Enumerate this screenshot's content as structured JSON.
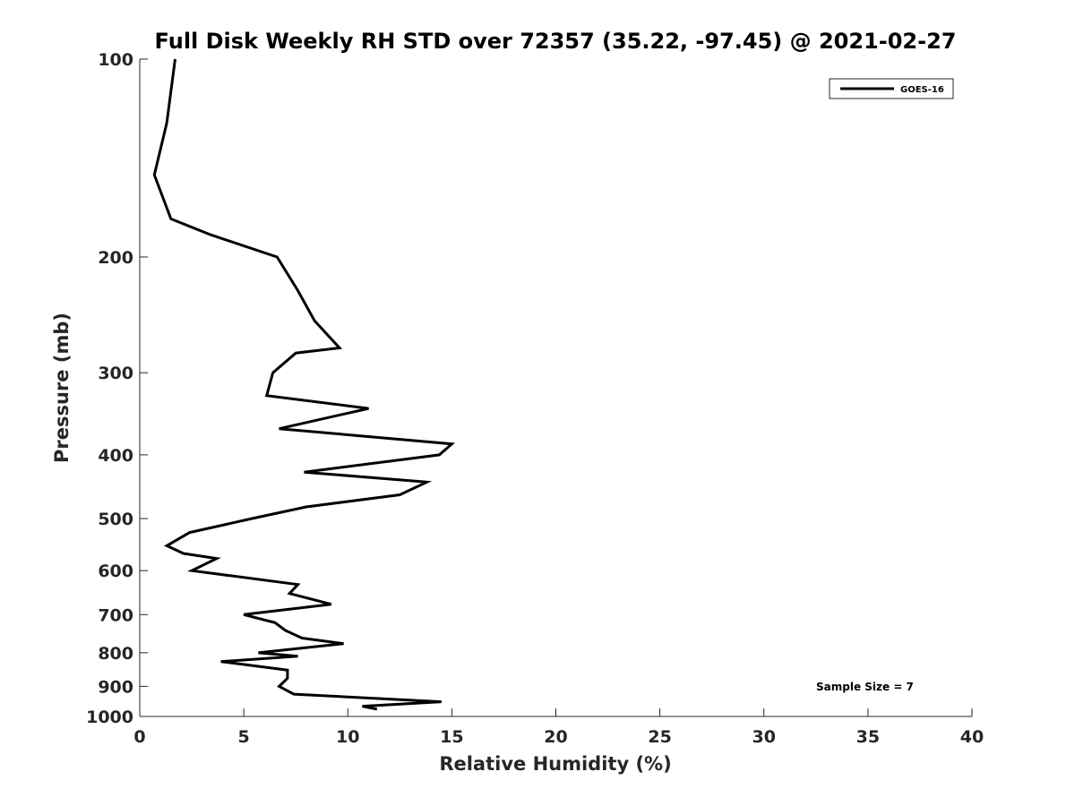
{
  "chart_data": {
    "type": "line",
    "title": "Full Disk Weekly RH STD over 72357 (35.22, -97.45) @ 2021-02-27",
    "xlabel": "Relative Humidity (%)",
    "ylabel": "Pressure (mb)",
    "xlim": [
      0,
      40
    ],
    "ylim": [
      1000,
      100
    ],
    "y_scale": "log",
    "y_reversed": true,
    "grid": false,
    "xticks": [
      0,
      5,
      10,
      15,
      20,
      25,
      30,
      35,
      40
    ],
    "yticks": [
      100,
      200,
      300,
      400,
      500,
      600,
      700,
      800,
      900,
      1000
    ],
    "legend": {
      "position": "top-right",
      "entries": [
        "GOES-16"
      ]
    },
    "annotation": "Sample Size = 7",
    "series": [
      {
        "name": "GOES-16",
        "color": "#000000",
        "points": [
          [
            1.7,
            100
          ],
          [
            1.3,
            125
          ],
          [
            0.7,
            150
          ],
          [
            1.5,
            175
          ],
          [
            3.4,
            185
          ],
          [
            6.6,
            200
          ],
          [
            7.6,
            225
          ],
          [
            8.4,
            250
          ],
          [
            9.6,
            275
          ],
          [
            7.5,
            280
          ],
          [
            6.4,
            300
          ],
          [
            6.1,
            325
          ],
          [
            11.0,
            340
          ],
          [
            6.7,
            365
          ],
          [
            15.0,
            385
          ],
          [
            14.4,
            400
          ],
          [
            7.9,
            425
          ],
          [
            13.8,
            440
          ],
          [
            12.5,
            460
          ],
          [
            8.0,
            480
          ],
          [
            5.4,
            500
          ],
          [
            2.4,
            525
          ],
          [
            1.3,
            550
          ],
          [
            2.1,
            565
          ],
          [
            3.7,
            575
          ],
          [
            2.5,
            600
          ],
          [
            7.6,
            630
          ],
          [
            7.2,
            650
          ],
          [
            9.2,
            675
          ],
          [
            5.0,
            700
          ],
          [
            6.5,
            720
          ],
          [
            7.0,
            740
          ],
          [
            7.8,
            760
          ],
          [
            9.8,
            775
          ],
          [
            5.7,
            800
          ],
          [
            7.6,
            810
          ],
          [
            3.9,
            825
          ],
          [
            7.1,
            850
          ],
          [
            7.1,
            875
          ],
          [
            6.7,
            900
          ],
          [
            7.4,
            925
          ],
          [
            14.5,
            950
          ],
          [
            10.7,
            965
          ],
          [
            11.4,
            975
          ]
        ]
      }
    ]
  }
}
